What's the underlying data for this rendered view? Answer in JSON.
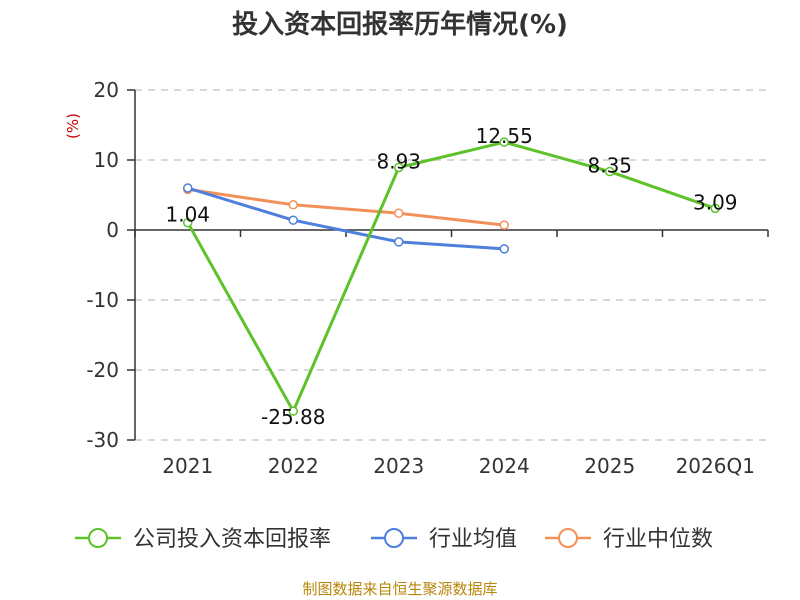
{
  "page": {
    "title": "投入资本回报率历年情况(%)",
    "source": "制图数据来自恒生聚源数据库"
  },
  "chart_data": {
    "type": "line",
    "title": "投入资本回报率历年情况(%)",
    "ylabel": "(%)",
    "xlabel": "",
    "categories": [
      "2021",
      "2022",
      "2023",
      "2024",
      "2025",
      "2026Q1"
    ],
    "ylim": [
      -30,
      20
    ],
    "yticks": [
      20,
      10,
      0,
      -10,
      -20,
      -30
    ],
    "grid": true,
    "legend_position": "bottom",
    "series": [
      {
        "name": "公司投入资本回报率",
        "color": "#5ec22a",
        "values": [
          1.04,
          -25.88,
          8.93,
          12.55,
          8.35,
          3.09
        ],
        "labels": [
          "1.04",
          "-25.88",
          "8.93",
          "12.55",
          "8.35",
          "3.09"
        ]
      },
      {
        "name": "行业均值",
        "color": "#4f7fdc",
        "values": [
          6.0,
          1.4,
          -1.7,
          -2.7,
          null,
          null
        ]
      },
      {
        "name": "行业中位数",
        "color": "#f2905a",
        "values": [
          5.8,
          3.6,
          2.4,
          0.7,
          null,
          null
        ]
      }
    ]
  }
}
